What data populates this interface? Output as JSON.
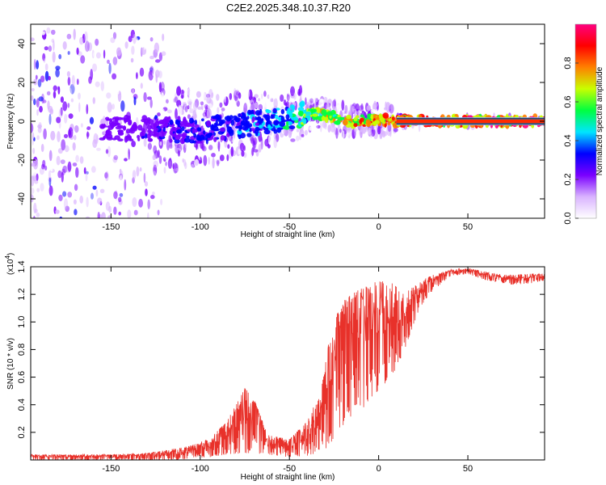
{
  "title": "C2E2.2025.348.10.37.R20",
  "chart_data": [
    {
      "type": "heatmap",
      "name": "spectrogram",
      "xlabel": "Height of straight line (km)",
      "ylabel": "Frequency (Hz)",
      "xlim": [
        -195,
        93
      ],
      "ylim": [
        -50,
        50
      ],
      "xticks": [
        -150,
        -100,
        -50,
        0,
        50
      ],
      "yticks": [
        -40,
        -20,
        0,
        20,
        40
      ],
      "colorbar": {
        "label": "Normalized spectral amplitude",
        "range": [
          0,
          1
        ],
        "ticks": [
          "0.0",
          "0.2",
          "0.4",
          "0.6",
          "0.8"
        ],
        "colors": [
          "#ffffff",
          "#d9b3ff",
          "#7a00ff",
          "#0000ff",
          "#00e5ff",
          "#00ff40",
          "#c8ff00",
          "#ff8000",
          "#ff0000",
          "#ff0080"
        ]
      },
      "ridge": [
        {
          "x": -190,
          "f": -3,
          "amp": 0.25
        },
        {
          "x": -160,
          "f": -4,
          "amp": 0.25
        },
        {
          "x": -120,
          "f": -4,
          "amp": 0.3
        },
        {
          "x": -100,
          "f": -5,
          "amp": 0.35
        },
        {
          "x": -80,
          "f": -2,
          "amp": 0.4
        },
        {
          "x": -60,
          "f": 0,
          "amp": 0.45
        },
        {
          "x": -45,
          "f": 3,
          "amp": 0.6
        },
        {
          "x": -35,
          "f": 4,
          "amp": 0.7
        },
        {
          "x": -25,
          "f": 2,
          "amp": 0.8
        },
        {
          "x": -15,
          "f": 0,
          "amp": 0.85
        },
        {
          "x": 0,
          "f": 1,
          "amp": 0.9
        },
        {
          "x": 10,
          "f": 0,
          "amp": 0.95
        },
        {
          "x": 50,
          "f": 0,
          "amp": 1.0
        },
        {
          "x": 93,
          "f": 0,
          "amp": 1.0
        }
      ]
    },
    {
      "type": "line",
      "name": "snr",
      "xlabel": "Height of straight line (km)",
      "ylabel": "SNR (10 * v/v)",
      "exponent_label": "(x10",
      "exponent_value": "4",
      "exponent_close": ")",
      "xlim": [
        -195,
        93
      ],
      "ylim": [
        0,
        1.4
      ],
      "xticks": [
        -150,
        -100,
        -50,
        0,
        50
      ],
      "yticks": [
        "0.2",
        "0.4",
        "0.6",
        "0.8",
        "1.0",
        "1.2",
        "1.4"
      ],
      "color": "#e8312a",
      "envelope": [
        {
          "x": -195,
          "lo": 0.0,
          "hi": 0.04
        },
        {
          "x": -150,
          "lo": 0.0,
          "hi": 0.04
        },
        {
          "x": -130,
          "lo": 0.0,
          "hi": 0.05
        },
        {
          "x": -110,
          "lo": 0.0,
          "hi": 0.09
        },
        {
          "x": -95,
          "lo": 0.02,
          "hi": 0.15
        },
        {
          "x": -85,
          "lo": 0.04,
          "hi": 0.28
        },
        {
          "x": -75,
          "lo": 0.05,
          "hi": 0.52
        },
        {
          "x": -70,
          "lo": 0.05,
          "hi": 0.45
        },
        {
          "x": -62,
          "lo": 0.04,
          "hi": 0.18
        },
        {
          "x": -50,
          "lo": 0.02,
          "hi": 0.15
        },
        {
          "x": -40,
          "lo": 0.03,
          "hi": 0.28
        },
        {
          "x": -32,
          "lo": 0.06,
          "hi": 0.52
        },
        {
          "x": -28,
          "lo": 0.1,
          "hi": 0.85
        },
        {
          "x": -24,
          "lo": 0.18,
          "hi": 1.05
        },
        {
          "x": -20,
          "lo": 0.25,
          "hi": 1.15
        },
        {
          "x": -15,
          "lo": 0.32,
          "hi": 1.22
        },
        {
          "x": -8,
          "lo": 0.38,
          "hi": 1.25
        },
        {
          "x": 0,
          "lo": 0.5,
          "hi": 1.3
        },
        {
          "x": 8,
          "lo": 0.62,
          "hi": 1.28
        },
        {
          "x": 14,
          "lo": 0.78,
          "hi": 1.2
        },
        {
          "x": 20,
          "lo": 1.0,
          "hi": 1.26
        },
        {
          "x": 28,
          "lo": 1.2,
          "hi": 1.33
        },
        {
          "x": 40,
          "lo": 1.33,
          "hi": 1.38
        },
        {
          "x": 50,
          "lo": 1.35,
          "hi": 1.39
        },
        {
          "x": 58,
          "lo": 1.31,
          "hi": 1.37
        },
        {
          "x": 65,
          "lo": 1.29,
          "hi": 1.35
        },
        {
          "x": 75,
          "lo": 1.27,
          "hi": 1.34
        },
        {
          "x": 85,
          "lo": 1.28,
          "hi": 1.35
        },
        {
          "x": 93,
          "lo": 1.3,
          "hi": 1.35
        }
      ]
    }
  ]
}
